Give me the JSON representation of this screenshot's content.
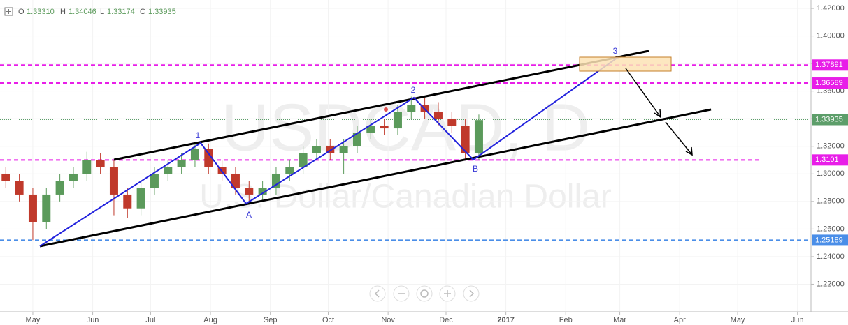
{
  "header": {
    "items": [
      {
        "key": "O",
        "value": "1.33310"
      },
      {
        "key": "H",
        "value": "1.34046"
      },
      {
        "key": "L",
        "value": "1.33174"
      },
      {
        "key": "C",
        "value": "1.33935"
      }
    ]
  },
  "chart_data": {
    "type": "candlestick",
    "title": "USDCAD, D",
    "subtitle": "U.S. Dollar/Canadian Dollar",
    "x": [
      -14,
      -7,
      0,
      7,
      14,
      21,
      28,
      35,
      42,
      49,
      56,
      63,
      70,
      77,
      84,
      91,
      98,
      105,
      112,
      119,
      126,
      133,
      140,
      147,
      154,
      161,
      168,
      175,
      182,
      189,
      196,
      203,
      210,
      217,
      224,
      231
    ],
    "open": [
      1.3,
      1.295,
      1.285,
      1.265,
      1.285,
      1.295,
      1.3,
      1.31,
      1.305,
      1.285,
      1.275,
      1.29,
      1.3,
      1.305,
      1.31,
      1.318,
      1.305,
      1.3,
      1.29,
      1.285,
      1.29,
      1.3,
      1.305,
      1.315,
      1.32,
      1.315,
      1.32,
      1.33,
      1.335,
      1.333,
      1.345,
      1.35,
      1.345,
      1.34,
      1.335,
      1.315
    ],
    "high": [
      1.305,
      1.3,
      1.29,
      1.29,
      1.3,
      1.305,
      1.316,
      1.315,
      1.31,
      1.29,
      1.295,
      1.305,
      1.31,
      1.315,
      1.323,
      1.322,
      1.31,
      1.305,
      1.295,
      1.295,
      1.305,
      1.31,
      1.32,
      1.325,
      1.325,
      1.325,
      1.335,
      1.34,
      1.34,
      1.35,
      1.356,
      1.355,
      1.352,
      1.345,
      1.34,
      1.343
    ],
    "low": [
      1.29,
      1.28,
      1.252,
      1.26,
      1.28,
      1.29,
      1.295,
      1.3,
      1.27,
      1.268,
      1.27,
      1.285,
      1.295,
      1.3,
      1.305,
      1.3,
      1.295,
      1.285,
      1.278,
      1.28,
      1.285,
      1.295,
      1.3,
      1.31,
      1.31,
      1.3,
      1.315,
      1.325,
      1.328,
      1.328,
      1.34,
      1.34,
      1.335,
      1.33,
      1.31,
      1.31
    ],
    "close": [
      1.295,
      1.285,
      1.265,
      1.285,
      1.295,
      1.3,
      1.31,
      1.305,
      1.285,
      1.275,
      1.29,
      1.3,
      1.305,
      1.31,
      1.318,
      1.305,
      1.3,
      1.29,
      1.285,
      1.29,
      1.3,
      1.305,
      1.315,
      1.32,
      1.315,
      1.32,
      1.33,
      1.335,
      1.333,
      1.345,
      1.35,
      1.345,
      1.34,
      1.335,
      1.315,
      1.339
    ],
    "up_color": "#5b9a5b",
    "down_color": "#c0392b",
    "xlim": [
      -17,
      403
    ],
    "xticks": [
      {
        "value": 0,
        "label": "May"
      },
      {
        "value": 31,
        "label": "Jun"
      },
      {
        "value": 61,
        "label": "Jul"
      },
      {
        "value": 92,
        "label": "Aug"
      },
      {
        "value": 123,
        "label": "Sep"
      },
      {
        "value": 153,
        "label": "Oct"
      },
      {
        "value": 184,
        "label": "Nov"
      },
      {
        "value": 214,
        "label": "Dec"
      },
      {
        "value": 245,
        "label": "2017"
      },
      {
        "value": 276,
        "label": "Feb"
      },
      {
        "value": 304,
        "label": "Mar"
      },
      {
        "value": 335,
        "label": "Apr"
      },
      {
        "value": 365,
        "label": "May"
      },
      {
        "value": 396,
        "label": "Jun"
      }
    ],
    "ylim": [
      1.2,
      1.4261
    ],
    "yticks": [
      {
        "value": 1.22,
        "label": "1.22000"
      },
      {
        "value": 1.24,
        "label": "1.24000"
      },
      {
        "value": 1.26,
        "label": "1.26000"
      },
      {
        "value": 1.28,
        "label": "1.28000"
      },
      {
        "value": 1.3,
        "label": "1.30000"
      },
      {
        "value": 1.32,
        "label": "1.32000"
      },
      {
        "value": 1.34,
        "label": "1.34000"
      },
      {
        "value": 1.36,
        "label": "1.36000"
      },
      {
        "value": 1.38,
        "label": "1.38000"
      },
      {
        "value": 1.4,
        "label": "1.40000"
      },
      {
        "value": 1.42,
        "label": "1.42000"
      }
    ],
    "price_lines": [
      {
        "value": 1.37891,
        "color": "#e81ee8"
      },
      {
        "value": 1.36589,
        "color": "#e81ee8"
      },
      {
        "value": 1.3101,
        "color": "#e81ee8"
      },
      {
        "value": 1.25189,
        "color": "#4a8ee8"
      },
      {
        "value": 1.33935,
        "color": "#5d9e6a"
      }
    ],
    "wave_labels": [
      "1",
      "A",
      "2",
      "B",
      "3"
    ]
  }
}
